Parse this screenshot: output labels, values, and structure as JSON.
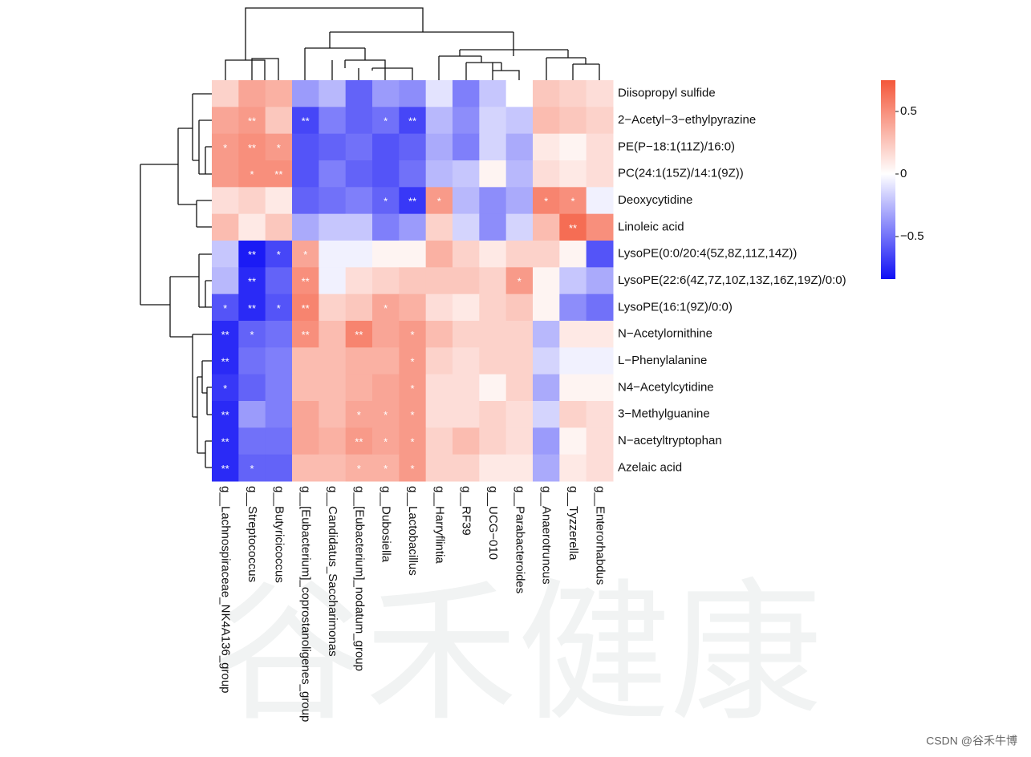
{
  "chart_data": {
    "type": "heatmap",
    "x": [
      "g__Lachnospiraceae_NK4A136_group",
      "g__Streptococcus",
      "g__Butyricicoccus",
      "g__[Eubacterium]_coprostanoligenes_group",
      "g__Candidatus_Saccharimonas",
      "g__[Eubacterium]_nodatum_group",
      "g__Dubosiella",
      "g__Lactobacillus",
      "g__Harryflintia",
      "g__RF39",
      "g__UCG−010",
      "g__Parabacteroides",
      "g__Anaerotruncus",
      "g__Tyzzerella",
      "g__Enterorhabdus"
    ],
    "y": [
      "Diisopropyl sulfide",
      "2−Acetyl−3−ethylpyrazine",
      "PE(P−18:1(11Z)/16:0)",
      "PC(24:1(15Z)/14:1(9Z))",
      "Deoxycytidine",
      "Linoleic acid",
      "LysoPE(0:0/20:4(5Z,8Z,11Z,14Z))",
      "LysoPE(22:6(4Z,7Z,10Z,13Z,16Z,19Z)/0:0)",
      "LysoPE(16:1(9Z)/0:0)",
      "N−Acetylornithine",
      "L−Phenylalanine",
      "N4−Acetylcytidine",
      "3−Methylguanine",
      "N−acetyltryptophan",
      "Azelaic acid"
    ],
    "values": [
      [
        0.2,
        0.4,
        0.35,
        -0.35,
        -0.25,
        -0.55,
        -0.35,
        -0.4,
        -0.1,
        -0.45,
        -0.2,
        0.0,
        0.25,
        0.2,
        0.15
      ],
      [
        0.4,
        0.45,
        0.25,
        -0.65,
        -0.45,
        -0.55,
        -0.5,
        -0.65,
        -0.25,
        -0.4,
        -0.15,
        -0.2,
        0.3,
        0.25,
        0.2
      ],
      [
        0.45,
        0.5,
        0.45,
        -0.6,
        -0.55,
        -0.5,
        -0.6,
        -0.55,
        -0.3,
        -0.45,
        -0.15,
        -0.3,
        0.1,
        0.05,
        0.15
      ],
      [
        0.45,
        0.5,
        0.5,
        -0.6,
        -0.45,
        -0.55,
        -0.6,
        -0.5,
        -0.25,
        -0.2,
        0.05,
        -0.25,
        0.15,
        0.1,
        0.15
      ],
      [
        0.15,
        0.2,
        0.1,
        -0.55,
        -0.5,
        -0.45,
        -0.55,
        -0.7,
        0.45,
        -0.25,
        -0.4,
        -0.3,
        0.55,
        0.5,
        -0.05
      ],
      [
        0.3,
        0.1,
        0.25,
        -0.3,
        -0.2,
        -0.2,
        -0.45,
        -0.35,
        0.2,
        -0.15,
        -0.4,
        -0.15,
        0.3,
        0.65,
        0.5
      ],
      [
        -0.2,
        -0.8,
        -0.65,
        0.4,
        -0.05,
        -0.05,
        0.05,
        0.05,
        0.35,
        0.2,
        0.1,
        0.2,
        0.2,
        0.05,
        -0.6
      ],
      [
        -0.25,
        -0.75,
        -0.55,
        0.5,
        -0.05,
        0.15,
        0.2,
        0.25,
        0.25,
        0.25,
        0.2,
        0.45,
        0.05,
        -0.2,
        -0.3
      ],
      [
        -0.6,
        -0.75,
        -0.6,
        0.55,
        0.2,
        0.25,
        0.4,
        0.35,
        0.15,
        0.1,
        0.2,
        0.25,
        0.05,
        -0.4,
        -0.5
      ],
      [
        -0.75,
        -0.55,
        -0.5,
        0.5,
        0.3,
        0.55,
        0.4,
        0.45,
        0.3,
        0.2,
        0.2,
        0.2,
        -0.25,
        0.1,
        0.1
      ],
      [
        -0.75,
        -0.5,
        -0.45,
        0.3,
        0.3,
        0.35,
        0.35,
        0.45,
        0.2,
        0.15,
        0.2,
        0.2,
        -0.15,
        -0.05,
        -0.05
      ],
      [
        -0.7,
        -0.55,
        -0.45,
        0.3,
        0.3,
        0.35,
        0.4,
        0.45,
        0.15,
        0.15,
        0.05,
        0.2,
        -0.3,
        0.05,
        0.05
      ],
      [
        -0.75,
        -0.35,
        -0.45,
        0.4,
        0.3,
        0.4,
        0.4,
        0.45,
        0.15,
        0.15,
        0.2,
        0.15,
        -0.15,
        0.2,
        0.15
      ],
      [
        -0.75,
        -0.5,
        -0.5,
        0.4,
        0.35,
        0.45,
        0.4,
        0.45,
        0.2,
        0.3,
        0.2,
        0.15,
        -0.35,
        0.05,
        0.15
      ],
      [
        -0.75,
        -0.55,
        -0.55,
        0.3,
        0.3,
        0.35,
        0.35,
        0.45,
        0.2,
        0.2,
        0.1,
        0.1,
        -0.3,
        0.1,
        0.15
      ]
    ],
    "significance": [
      [
        null,
        null,
        null,
        null,
        null,
        null,
        null,
        null,
        null,
        null,
        null,
        null,
        null,
        null,
        null
      ],
      [
        null,
        "**",
        null,
        "**",
        null,
        null,
        "*",
        "**",
        null,
        null,
        null,
        null,
        null,
        null,
        null
      ],
      [
        "*",
        "**",
        "*",
        null,
        null,
        null,
        null,
        null,
        null,
        null,
        null,
        null,
        null,
        null,
        null
      ],
      [
        null,
        "*",
        "**",
        null,
        null,
        null,
        null,
        null,
        null,
        null,
        null,
        null,
        null,
        null,
        null
      ],
      [
        null,
        null,
        null,
        null,
        null,
        null,
        "*",
        "**",
        "*",
        null,
        null,
        null,
        "*",
        "*",
        null
      ],
      [
        null,
        null,
        null,
        null,
        null,
        null,
        null,
        null,
        null,
        null,
        null,
        null,
        null,
        "**",
        null
      ],
      [
        null,
        "**",
        "*",
        "*",
        null,
        null,
        null,
        null,
        null,
        null,
        null,
        null,
        null,
        null,
        null
      ],
      [
        null,
        "**",
        null,
        "**",
        null,
        null,
        null,
        null,
        null,
        null,
        null,
        "*",
        null,
        null,
        null
      ],
      [
        "*",
        "**",
        "*",
        "**",
        null,
        null,
        "*",
        null,
        null,
        null,
        null,
        null,
        null,
        null,
        null
      ],
      [
        "**",
        "*",
        null,
        "**",
        null,
        "**",
        null,
        "*",
        null,
        null,
        null,
        null,
        null,
        null,
        null
      ],
      [
        "**",
        null,
        null,
        null,
        null,
        null,
        null,
        "*",
        null,
        null,
        null,
        null,
        null,
        null,
        null
      ],
      [
        "*",
        null,
        null,
        null,
        null,
        null,
        null,
        "*",
        null,
        null,
        null,
        null,
        null,
        null,
        null
      ],
      [
        "**",
        null,
        null,
        null,
        null,
        "*",
        "*",
        "*",
        null,
        null,
        null,
        null,
        null,
        null,
        null
      ],
      [
        "**",
        null,
        null,
        null,
        null,
        "**",
        "*",
        "*",
        null,
        null,
        null,
        null,
        null,
        null,
        null
      ],
      [
        "**",
        "*",
        null,
        null,
        null,
        "*",
        "*",
        "*",
        null,
        null,
        null,
        null,
        null,
        null,
        null
      ]
    ],
    "colors": [
      "#1010f5",
      "#ffffff",
      "#f4573a"
    ],
    "zlim": [
      -0.84,
      0.75
    ],
    "zticks": [
      0.5,
      0,
      {
        "value": -0.5,
        "label": "−0.5"
      }
    ],
    "watermark": "谷禾健康",
    "credit": "CSDN @谷禾牛博"
  }
}
